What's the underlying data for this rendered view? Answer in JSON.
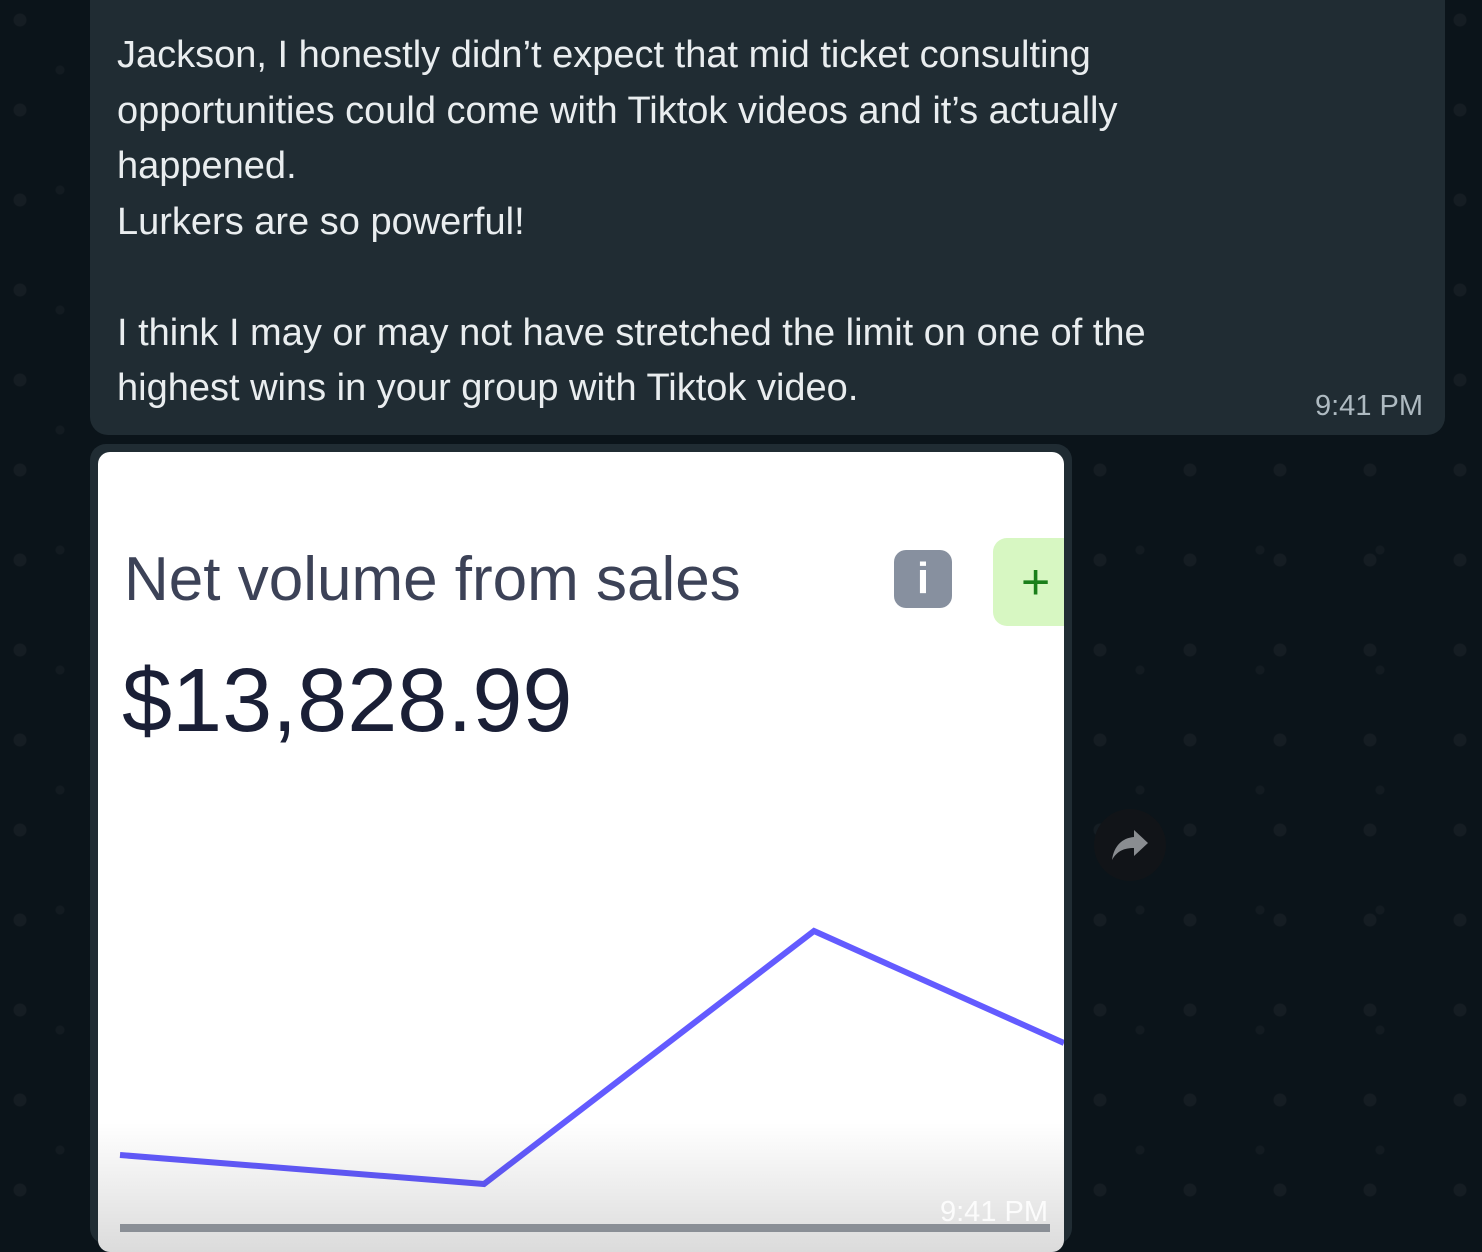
{
  "message": {
    "text": "Jackson, I honestly didn’t expect that mid ticket consulting\nopportunities could come with Tiktok videos and it’s actually\nhappened.\nLurkers are so powerful!\n\nI think I may or may not have stretched the limit on one of the\nhighest wins in your group with Tiktok video.",
    "time": "9:41 PM"
  },
  "image_message": {
    "title": "Net volume from sales",
    "info_icon": "info-icon",
    "add_icon": "plus-icon",
    "amount": "$13,828.99",
    "time": "9:41 PM",
    "line_color": "#635bff",
    "chart_values": [
      75,
      46,
      299,
      187
    ]
  },
  "forward_icon": "forward-icon"
}
